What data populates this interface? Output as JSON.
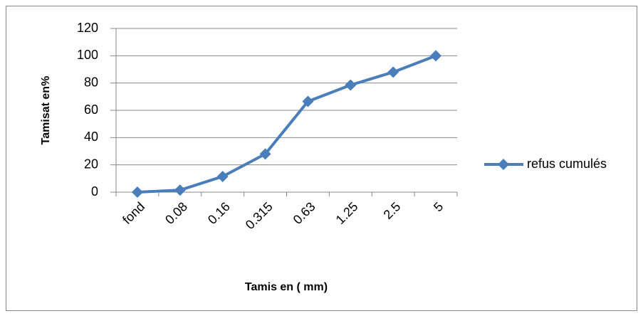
{
  "chart_data": {
    "type": "line",
    "categories": [
      "fond",
      "0.08",
      "0.16",
      "0.315",
      "0.63",
      "1.25",
      "2.5",
      "5"
    ],
    "series": [
      {
        "name": "refus cumulés",
        "color": "#4a7ebb",
        "values": [
          0,
          1.5,
          11.5,
          28,
          66.5,
          78.5,
          88,
          100
        ]
      }
    ],
    "ylim": [
      0,
      120
    ],
    "yticks": [
      0,
      20,
      40,
      60,
      80,
      100,
      120
    ],
    "ylabel": "Tamisat en%",
    "xlabel": "Tamis en ( mm)",
    "grid": true,
    "legend": "right"
  }
}
